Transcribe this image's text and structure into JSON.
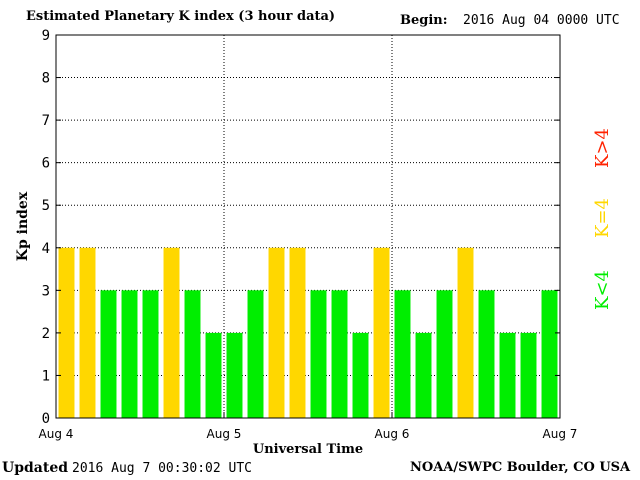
{
  "header": {
    "title": "Estimated Planetary K index (3 hour data)",
    "begin_label": "Begin:",
    "begin_value": "2016 Aug 04 0000 UTC"
  },
  "footer": {
    "updated_label": "Updated",
    "updated_value": "2016 Aug  7 00:30:02 UTC",
    "credit": "NOAA/SWPC Boulder, CO USA"
  },
  "legend": [
    {
      "label": "K<4",
      "color": "#00ee00"
    },
    {
      "label": "K=4",
      "color": "#ffd700"
    },
    {
      "label": "K>4",
      "color": "#ff2200"
    }
  ],
  "chart_data": {
    "type": "bar",
    "title": "Estimated Planetary K index (3 hour data)",
    "xlabel": "Universal Time",
    "ylabel": "Kp index",
    "ylim": [
      0,
      9
    ],
    "yticks": [
      0,
      1,
      2,
      3,
      4,
      5,
      6,
      7,
      8,
      9
    ],
    "xtick_labels": [
      "Aug 4",
      "Aug 5",
      "Aug 6",
      "Aug 7"
    ],
    "grid": true,
    "values": [
      4,
      4,
      3,
      3,
      3,
      4,
      3,
      2,
      2,
      3,
      4,
      4,
      3,
      3,
      2,
      4,
      3,
      2,
      3,
      4,
      3,
      2,
      2,
      3
    ],
    "colors": {
      "below_4": "#00ee00",
      "equal_4": "#ffd700",
      "above_4": "#ff2200"
    }
  }
}
